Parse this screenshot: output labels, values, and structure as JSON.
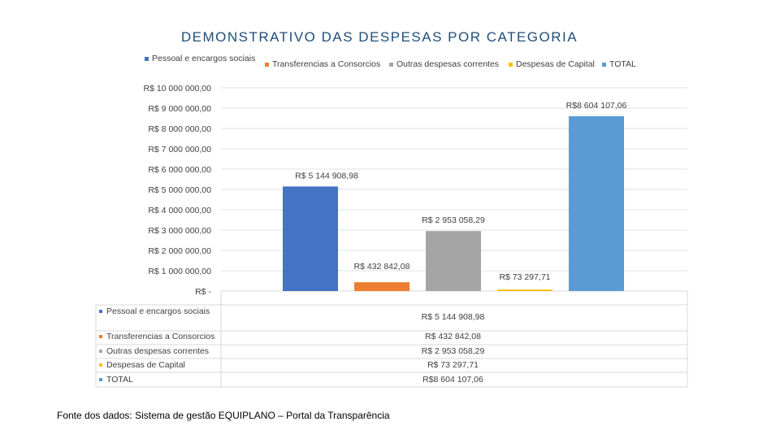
{
  "colors": {
    "pessoal": "#4472c4",
    "transferencias": "#ed7d31",
    "outras": "#a5a5a5",
    "capital": "#ffc000",
    "total": "#5b9bd5",
    "grid": "#d9d9d9",
    "title": "#1f4e79"
  },
  "chart_data": {
    "type": "bar",
    "title": "DEMONSTRATIVO DAS DESPESAS POR CATEGORIA",
    "categories": [
      "Pessoal e encargos sociais",
      "Transferencias a Consorcios",
      "Outras despesas correntes",
      "Despesas de Capital",
      "TOTAL"
    ],
    "values": [
      5144908.98,
      432842.08,
      2953058.29,
      73297.71,
      8604107.06
    ],
    "value_labels": [
      "R$ 5 144 908,98",
      "R$ 432 842,08",
      "R$ 2 953 058,29",
      "R$ 73 297,71",
      "R$8 604 107,06"
    ],
    "ylim": [
      0,
      10000000
    ],
    "yticks": [
      0,
      1000000,
      2000000,
      3000000,
      4000000,
      5000000,
      6000000,
      7000000,
      8000000,
      9000000,
      10000000
    ],
    "ytick_labels": [
      "R$ -",
      "R$ 1 000 000,00",
      "R$ 2 000 000,00",
      "R$ 3 000 000,00",
      "R$ 4 000 000,00",
      "R$ 5 000 000,00",
      "R$ 6 000 000,00",
      "R$ 7 000 000,00",
      "R$ 8 000 000,00",
      "R$ 9 000 000,00",
      "R$ 10 000 000,00"
    ],
    "legend": [
      "Pessoal e encargos sociais",
      "Transferencias a Consorcios",
      "Outras despesas correntes",
      "Despesas de Capital",
      "TOTAL"
    ],
    "grid": true
  },
  "table": {
    "rows": [
      {
        "label": "Pessoal e encargos sociais",
        "value": "R$ 5 144 908,98"
      },
      {
        "label": "Transferencias a Consorcios",
        "value": "R$ 432 842,08"
      },
      {
        "label": "Outras despesas correntes",
        "value": "R$ 2 953 058,29"
      },
      {
        "label": "Despesas de Capital",
        "value": "R$ 73 297,71"
      },
      {
        "label": "TOTAL",
        "value": "R$8 604 107,06"
      }
    ]
  },
  "footer": {
    "source": "Fonte dos dados: Sistema de gestão EQUIPLANO – Portal da Transparência"
  }
}
